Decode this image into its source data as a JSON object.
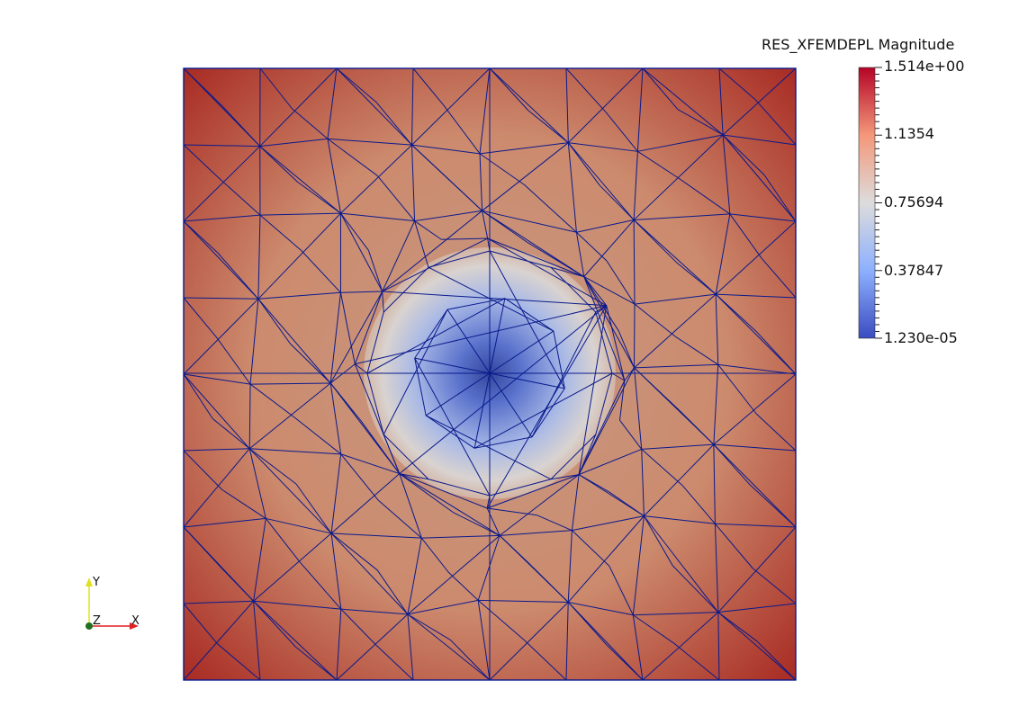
{
  "legend": {
    "title": "RES_XFEMDEPL Magnitude",
    "max_label": "1.514e+00",
    "tick_labels": [
      "1.1354",
      "0.75694",
      "0.37847"
    ],
    "min_label": "1.230e-05",
    "range": [
      1.23e-05,
      1.514
    ],
    "colormap": [
      "#3b4cc0",
      "#8db0fe",
      "#dddcdc",
      "#f4987a",
      "#b40426"
    ]
  },
  "mesh": {
    "edge_color": "#0a1a8c",
    "far_field_color": "#c96e4f",
    "hole_center_color": "#3a4fc5",
    "hole_edge_color": "#d8cfcb"
  },
  "orientation_axes": {
    "x_label": "X",
    "y_label": "Y",
    "z_label": "Z",
    "x_color": "#e02020",
    "y_color": "#e0e020",
    "z_color": "#207020"
  }
}
